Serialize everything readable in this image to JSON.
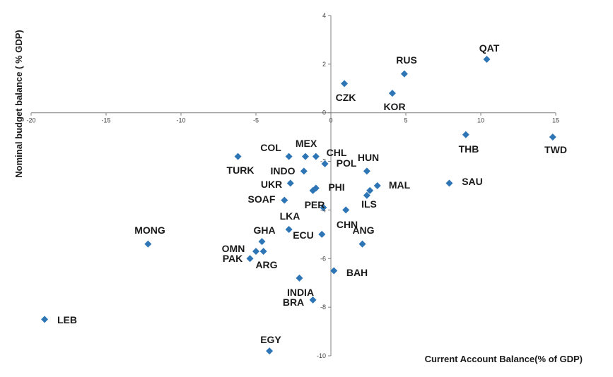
{
  "chart_data": {
    "type": "scatter",
    "xlabel": "Current Account Balance(% of GDP)",
    "ylabel": "Nominal budget balance ( % GDP)",
    "xlim": [
      -20,
      15
    ],
    "ylim": [
      -10,
      4
    ],
    "x_ticks": [
      -20,
      -15,
      -10,
      -5,
      0,
      5,
      10,
      15
    ],
    "y_ticks": [
      -10,
      -8,
      -6,
      -4,
      -2,
      0,
      2,
      4
    ],
    "x_tick_labels": [
      "-20",
      "-15",
      "-10",
      "-5",
      "0",
      "5",
      "10",
      "15"
    ],
    "y_tick_labels": [
      "-10",
      "-8",
      "-6",
      "-4",
      "-2",
      "0",
      "2",
      "4"
    ],
    "marker_color": "#2E75B6",
    "grid": false,
    "points": [
      {
        "label": "QAT",
        "x": 10.4,
        "y": 2.2
      },
      {
        "label": "RUS",
        "x": 4.9,
        "y": 1.6
      },
      {
        "label": "CZK",
        "x": 0.9,
        "y": 1.2
      },
      {
        "label": "KOR",
        "x": 4.1,
        "y": 0.8
      },
      {
        "label": "THB",
        "x": 9.0,
        "y": -0.9
      },
      {
        "label": "TWD",
        "x": 14.8,
        "y": -1.0
      },
      {
        "label": "COL",
        "x": -2.8,
        "y": -1.8
      },
      {
        "label": "MEX",
        "x": -1.7,
        "y": -1.8
      },
      {
        "label": "CHL",
        "x": -1.0,
        "y": -1.8
      },
      {
        "label": "TURK",
        "x": -6.2,
        "y": -1.8
      },
      {
        "label": "POL",
        "x": -0.4,
        "y": -2.1
      },
      {
        "label": "HUN",
        "x": 2.4,
        "y": -2.4
      },
      {
        "label": "INDO",
        "x": -1.8,
        "y": -2.4
      },
      {
        "label": "UKR",
        "x": -2.7,
        "y": -2.9
      },
      {
        "label": "PHI",
        "x": -1.0,
        "y": -3.1
      },
      {
        "label": "PHI2",
        "x": -1.2,
        "y": -3.2
      },
      {
        "label": "MAL",
        "x": 3.1,
        "y": -3.0
      },
      {
        "label": "ILS2",
        "x": 2.6,
        "y": -3.2
      },
      {
        "label": "SAU",
        "x": 7.9,
        "y": -2.9
      },
      {
        "label": "SOAF",
        "x": -3.1,
        "y": -3.6
      },
      {
        "label": "ILS",
        "x": 2.4,
        "y": -3.4
      },
      {
        "label": "PER",
        "x": -0.5,
        "y": -3.9
      },
      {
        "label": "CHN",
        "x": 1.0,
        "y": -4.0
      },
      {
        "label": "LKA",
        "x": -2.8,
        "y": -4.8
      },
      {
        "label": "ECU",
        "x": -0.6,
        "y": -5.0
      },
      {
        "label": "GHA",
        "x": -4.6,
        "y": -5.3
      },
      {
        "label": "ANG",
        "x": 2.1,
        "y": -5.4
      },
      {
        "label": "MONG",
        "x": -12.2,
        "y": -5.4
      },
      {
        "label": "OMN",
        "x": -5.0,
        "y": -5.7
      },
      {
        "label": "ARG",
        "x": -4.5,
        "y": -5.7
      },
      {
        "label": "PAK",
        "x": -5.4,
        "y": -6.0
      },
      {
        "label": "BAH",
        "x": 0.2,
        "y": -6.5
      },
      {
        "label": "INDIA",
        "x": -2.1,
        "y": -6.8
      },
      {
        "label": "BRA",
        "x": -1.2,
        "y": -7.7
      },
      {
        "label": "LEB",
        "x": -19.1,
        "y": -8.5
      },
      {
        "label": "EGY",
        "x": -4.1,
        "y": -9.8
      }
    ],
    "annotations": [
      {
        "text": "QAT"
      },
      {
        "text": "RUS"
      },
      {
        "text": "CZK"
      },
      {
        "text": "KOR"
      },
      {
        "text": "THB"
      },
      {
        "text": "TWD"
      },
      {
        "text": "COL"
      },
      {
        "text": "MEX"
      },
      {
        "text": "CHL"
      },
      {
        "text": "POL"
      },
      {
        "text": "HUN"
      },
      {
        "text": "TURK"
      },
      {
        "text": "INDO"
      },
      {
        "text": "UKR"
      },
      {
        "text": "PHI"
      },
      {
        "text": "MAL"
      },
      {
        "text": "SAU"
      },
      {
        "text": "SOAF"
      },
      {
        "text": "ILS"
      },
      {
        "text": "PER"
      },
      {
        "text": "LKA"
      },
      {
        "text": "CHN"
      },
      {
        "text": "ANG"
      },
      {
        "text": "MONG"
      },
      {
        "text": "GHA"
      },
      {
        "text": "ECU"
      },
      {
        "text": "OMN"
      },
      {
        "text": "PAK"
      },
      {
        "text": "ARG"
      },
      {
        "text": "BAH"
      },
      {
        "text": "INDIA"
      },
      {
        "text": "BRA"
      },
      {
        "text": "LEB"
      },
      {
        "text": "EGY"
      }
    ]
  }
}
